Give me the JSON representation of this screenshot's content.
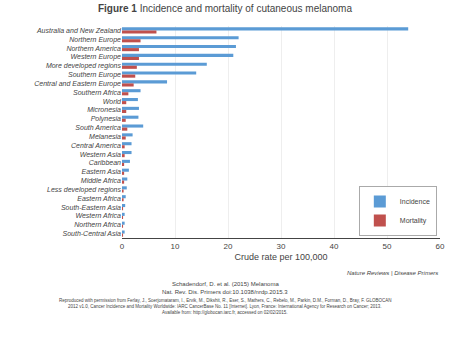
{
  "chart_data": {
    "type": "bar",
    "orientation": "horizontal",
    "title": "Figure 1",
    "subtitle": "Incidence and mortality of cutaneous melanoma",
    "xlabel": "Crude rate per 100,000",
    "categories": [
      "Australia and New Zealand",
      "Northern Europe",
      "Northern America",
      "Western Europe",
      "More developed regions",
      "Southern Europe",
      "Central and Eastern Europe",
      "Southern Africa",
      "World",
      "Micronesia",
      "Polynesia",
      "South America",
      "Melanesia",
      "Central America",
      "Western Asia",
      "Caribbean",
      "Eastern Asia",
      "Middle Africa",
      "Less developed regions",
      "Eastern Africa",
      "South-Eastern Asia",
      "Western Africa",
      "Northern Africa",
      "South-Central Asia"
    ],
    "series": [
      {
        "name": "Incidence",
        "color": "#5B9BD5",
        "values": [
          54.0,
          22.0,
          21.5,
          21.0,
          16.0,
          14.0,
          8.5,
          3.5,
          3.0,
          3.2,
          3.1,
          4.0,
          2.0,
          1.8,
          1.8,
          1.5,
          1.3,
          1.0,
          0.9,
          0.7,
          0.6,
          0.5,
          0.5,
          0.5
        ]
      },
      {
        "name": "Mortality",
        "color": "#C0504D",
        "values": [
          6.5,
          3.5,
          3.2,
          3.2,
          2.8,
          2.5,
          2.2,
          1.2,
          0.8,
          0.8,
          0.7,
          1.0,
          0.7,
          0.5,
          0.5,
          0.4,
          0.4,
          0.4,
          0.3,
          0.3,
          0.2,
          0.2,
          0.2,
          0.2
        ]
      }
    ],
    "xlim": [
      0,
      60
    ],
    "xticks": [
      0,
      10,
      20,
      30,
      40,
      50,
      60
    ],
    "grid": true,
    "legend": "lower right",
    "annotations": [
      "Nature Reviews | Disease Primers",
      "Schadendorf, D. et al. (2015) Melanoma",
      "Nat. Rev. Dis. Primers doi:10.1038/nrdp.2015.3",
      "Reproduced with permission from Ferlay, J., Soerjomataram, I., Ervik, M., Dikshit, R., Eser, S., Mathers, C., Rebelo, M., Parkin, D.M., Forman, D., Bray, F. GLOBOCAN",
      "2012 v1.0, Cancer Incidence and Mortality Worldwide: IARC CancerBase No. 11 [Internet]. Lyon, France: International Agency for Research on Cancer; 2013.",
      "Available from: http://globocan.iarc.fr, accessed on 02/02/2015."
    ]
  }
}
